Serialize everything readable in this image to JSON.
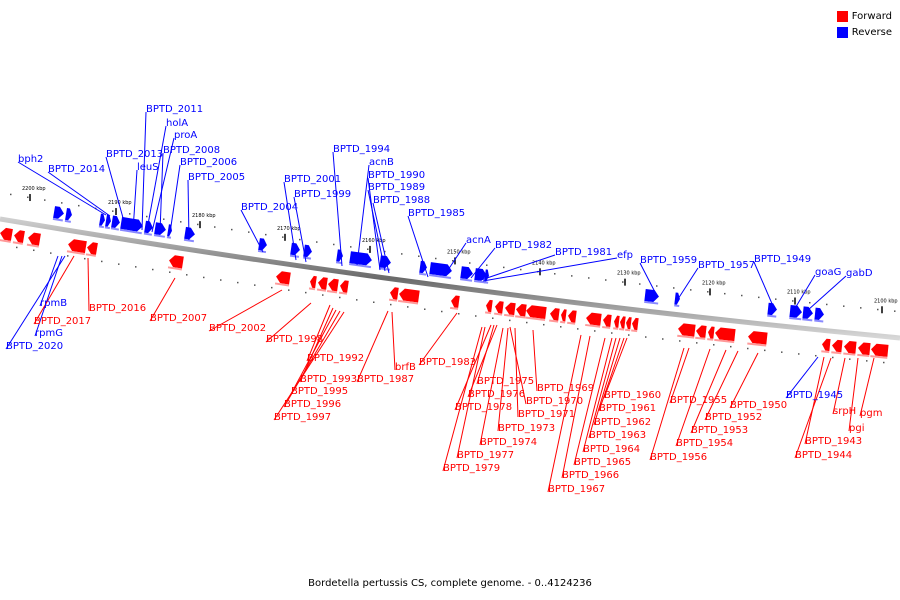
{
  "legend": [
    {
      "label": "Forward",
      "color": "#ff0000"
    },
    {
      "label": "Reverse",
      "color": "#0000ff"
    }
  ],
  "caption": "Bordetella pertussis CS, complete genome. - 0..4124236",
  "ticks": [
    "2200 kbp",
    "2190 kbp",
    "2180 kbp",
    "2170 kbp",
    "2160 kbp",
    "2150 kbp",
    "2140 kbp",
    "2130 kbp",
    "2120 kbp",
    "2110 kbp",
    "2100 kbp"
  ],
  "reverse_labels": [
    "BPTD_2011",
    "holA",
    "proA",
    "BPTD_2013",
    "BPTD_2008",
    "leuS",
    "BPTD_2006",
    "bph2",
    "BPTD_2014",
    "BPTD_2005",
    "BPTD_2004",
    "BPTD_2001",
    "BPTD_1999",
    "BPTD_1994",
    "acnB",
    "BPTD_1990",
    "BPTD_1989",
    "BPTD_1988",
    "BPTD_1985",
    "acnA",
    "BPTD_1982",
    "BPTD_1981",
    "efp",
    "BPTD_1959",
    "BPTD_1957",
    "BPTD_1949",
    "goaG",
    "gabD",
    "rpmB",
    "rpmG",
    "BPTD_2020",
    "BPTD_1945"
  ],
  "forward_labels": [
    "BPTD_2017",
    "BPTD_2016",
    "BPTD_2007",
    "BPTD_2002",
    "BPTD_1998",
    "BPTD_1992",
    "BPTD_1993",
    "BPTD_1995",
    "BPTD_1996",
    "BPTD_1997",
    "brfB",
    "BPTD_1987",
    "BPTD_1983",
    "BPTD_1975",
    "BPTD_1976",
    "BPTD_1978",
    "BPTD_1970",
    "BPTD_1969",
    "BPTD_1971",
    "BPTD_1973",
    "BPTD_1974",
    "BPTD_1977",
    "BPTD_1979",
    "BPTD_1960",
    "BPTD_1961",
    "BPTD_1962",
    "BPTD_1963",
    "BPTD_1964",
    "BPTD_1965",
    "BPTD_1966",
    "BPTD_1967",
    "BPTD_1955",
    "BPTD_1950",
    "BPTD_1952",
    "BPTD_1953",
    "BPTD_1954",
    "BPTD_1956",
    "srpH",
    "pgm",
    "pgi",
    "BPTD_1943",
    "BPTD_1944"
  ]
}
